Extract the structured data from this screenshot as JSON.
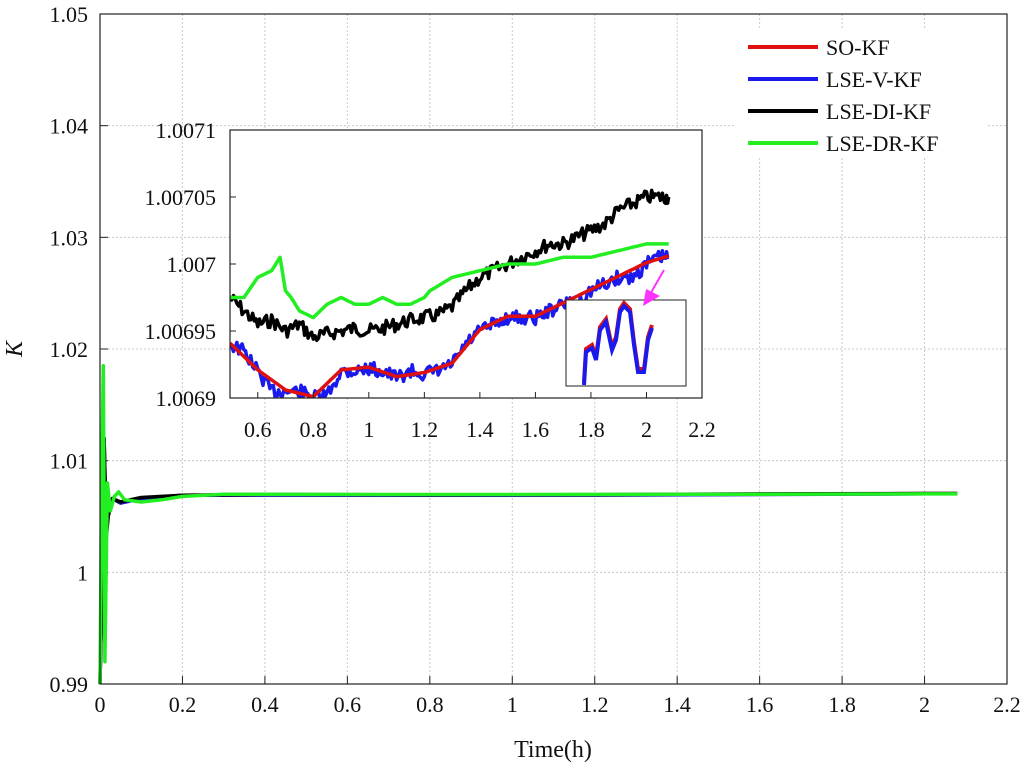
{
  "chart_data": {
    "main": {
      "type": "line",
      "xlabel": "Time(h)",
      "ylabel": "K",
      "xlim": [
        0,
        2.2
      ],
      "ylim": [
        0.99,
        1.05
      ],
      "xticks": [
        "0",
        "0.2",
        "0.4",
        "0.6",
        "0.8",
        "1",
        "1.2",
        "1.4",
        "1.6",
        "1.8",
        "2",
        "2.2"
      ],
      "yticks": [
        "0.99",
        "1",
        "1.01",
        "1.02",
        "1.03",
        "1.04",
        "1.05"
      ],
      "grid": true,
      "legend_position": "top-right",
      "series": [
        {
          "name": "SO-KF",
          "color": "#e01010",
          "x": [
            0,
            0.005,
            0.01,
            0.015,
            0.02,
            0.03,
            0.05,
            0.1,
            0.2,
            0.4,
            0.8,
            1.2,
            1.6,
            2.0,
            2.08
          ],
          "y": [
            0.99,
            1.0,
            1.012,
            1.004,
            1.0055,
            1.0066,
            1.0062,
            1.0066,
            1.0069,
            1.00695,
            1.00693,
            1.00695,
            1.007,
            1.00705,
            1.00705
          ]
        },
        {
          "name": "LSE-V-KF",
          "color": "#1a1aee",
          "x": [
            0,
            0.005,
            0.01,
            0.015,
            0.02,
            0.03,
            0.05,
            0.1,
            0.2,
            0.4,
            0.8,
            1.2,
            1.6,
            2.0,
            2.08
          ],
          "y": [
            0.99,
            1.0,
            1.012,
            1.004,
            1.0055,
            1.0066,
            1.0062,
            1.0066,
            1.0069,
            1.00692,
            1.0069,
            1.00692,
            1.00697,
            1.00703,
            1.00703
          ]
        },
        {
          "name": "LSE-DI-KF",
          "color": "#000000",
          "x": [
            0,
            0.005,
            0.01,
            0.015,
            0.02,
            0.03,
            0.05,
            0.1,
            0.2,
            0.4,
            0.8,
            1.2,
            1.6,
            2.0,
            2.08
          ],
          "y": [
            0.99,
            1.0,
            1.012,
            1.003,
            1.005,
            1.0066,
            1.0063,
            1.0067,
            1.0069,
            1.00697,
            1.00693,
            1.00695,
            1.00702,
            1.00706,
            1.00706
          ]
        },
        {
          "name": "LSE-DR-KF",
          "color": "#22ee22",
          "x": [
            0,
            0.004,
            0.008,
            0.012,
            0.018,
            0.025,
            0.035,
            0.045,
            0.06,
            0.1,
            0.15,
            0.2,
            0.3,
            0.5,
            0.8,
            1.2,
            1.6,
            2.0,
            2.08
          ],
          "y": [
            0.99,
            1.008,
            1.0185,
            0.992,
            1.008,
            1.0055,
            1.0068,
            1.0072,
            1.0065,
            1.0063,
            1.0065,
            1.0068,
            1.007,
            1.00698,
            1.00697,
            1.00698,
            1.007,
            1.00702,
            1.00702
          ]
        }
      ]
    },
    "inset": {
      "type": "line",
      "xlim": [
        0.5,
        2.2
      ],
      "ylim": [
        1.0069,
        1.0071
      ],
      "xticks": [
        "0.6",
        "0.8",
        "1",
        "1.2",
        "1.4",
        "1.6",
        "1.8",
        "2",
        "2.2"
      ],
      "yticks": [
        "1.0069",
        "1.00695",
        "1.007",
        "1.00705",
        "1.0071"
      ],
      "series": [
        {
          "name": "LSE-DI-KF",
          "color": "#000000",
          "x": [
            0.5,
            0.55,
            0.6,
            0.65,
            0.7,
            0.75,
            0.8,
            0.85,
            0.9,
            0.95,
            1.0,
            1.05,
            1.1,
            1.15,
            1.2,
            1.25,
            1.3,
            1.35,
            1.4,
            1.45,
            1.5,
            1.55,
            1.6,
            1.65,
            1.7,
            1.75,
            1.8,
            1.85,
            1.9,
            1.95,
            2.0,
            2.05,
            2.08
          ],
          "y": [
            1.006975,
            1.006965,
            1.006955,
            1.006958,
            1.00695,
            1.006955,
            1.006945,
            1.006948,
            1.00695,
            1.006952,
            1.00695,
            1.006952,
            1.006955,
            1.006958,
            1.00696,
            1.006962,
            1.006968,
            1.00698,
            1.00699,
            1.006995,
            1.007,
            1.007005,
            1.00701,
            1.007015,
            1.007015,
            1.00702,
            1.007025,
            1.00703,
            1.00704,
            1.007045,
            1.00705,
            1.00705,
            1.00705
          ]
        },
        {
          "name": "LSE-V-KF",
          "color": "#1a1aee",
          "x": [
            0.5,
            0.55,
            0.6,
            0.65,
            0.7,
            0.75,
            0.8,
            0.85,
            0.9,
            0.95,
            1.0,
            1.05,
            1.1,
            1.15,
            1.2,
            1.25,
            1.3,
            1.35,
            1.4,
            1.45,
            1.5,
            1.55,
            1.6,
            1.65,
            1.7,
            1.75,
            1.8,
            1.85,
            1.9,
            1.95,
            2.0,
            2.05,
            2.08
          ],
          "y": [
            1.00694,
            1.006935,
            1.00692,
            1.006905,
            1.006905,
            1.006905,
            1.0069,
            1.006902,
            1.00692,
            1.00692,
            1.006922,
            1.00692,
            1.006915,
            1.00692,
            1.006918,
            1.00692,
            1.006925,
            1.00694,
            1.00695,
            1.006955,
            1.00696,
            1.00696,
            1.00696,
            1.006965,
            1.00697,
            1.00697,
            1.00698,
            1.006985,
            1.00699,
            1.00699,
            1.007,
            1.007005,
            1.007005
          ]
        },
        {
          "name": "SO-KF",
          "color": "#e01010",
          "x": [
            0.5,
            0.6,
            0.7,
            0.8,
            0.9,
            1.0,
            1.1,
            1.2,
            1.3,
            1.4,
            1.5,
            1.6,
            1.7,
            1.8,
            1.9,
            2.0,
            2.08
          ],
          "y": [
            1.006941,
            1.006921,
            1.006906,
            1.006901,
            1.006921,
            1.006923,
            1.006916,
            1.006919,
            1.006926,
            1.006951,
            1.006961,
            1.006961,
            1.006971,
            1.006981,
            1.006991,
            1.007001,
            1.007006
          ]
        },
        {
          "name": "LSE-DR-KF",
          "color": "#22ee22",
          "x": [
            0.5,
            0.55,
            0.6,
            0.65,
            0.68,
            0.7,
            0.72,
            0.75,
            0.8,
            0.85,
            0.9,
            0.95,
            1.0,
            1.05,
            1.1,
            1.15,
            1.2,
            1.22,
            1.3,
            1.4,
            1.5,
            1.6,
            1.7,
            1.8,
            1.9,
            2.0,
            2.08
          ],
          "y": [
            1.006975,
            1.006975,
            1.00699,
            1.006995,
            1.007005,
            1.00698,
            1.006975,
            1.006965,
            1.00696,
            1.00697,
            1.006975,
            1.00697,
            1.00697,
            1.006975,
            1.00697,
            1.00697,
            1.006975,
            1.00698,
            1.00699,
            1.006995,
            1.007,
            1.007,
            1.007005,
            1.007005,
            1.00701,
            1.007015,
            1.007015
          ]
        }
      ]
    }
  }
}
